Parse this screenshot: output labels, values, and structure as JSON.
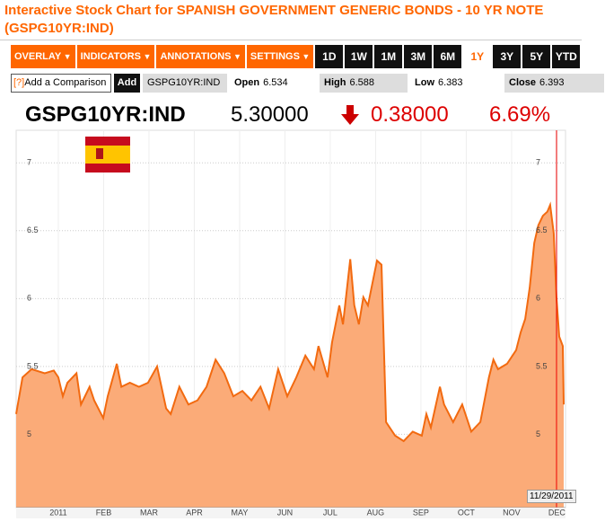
{
  "header": {
    "title": "Interactive Stock Chart for SPANISH GOVERNMENT GENERIC BONDS - 10 YR NOTE (GSPG10YR:IND)"
  },
  "toolbar": {
    "menus": [
      "OVERLAY",
      "INDICATORS",
      "ANNOTATIONS",
      "SETTINGS"
    ],
    "ranges": [
      "1D",
      "1W",
      "1M",
      "3M",
      "6M",
      "1Y",
      "3Y",
      "5Y",
      "YTD"
    ],
    "selected": "1Y"
  },
  "comparison": {
    "help": "[?]",
    "placeholder": "Add a Comparison",
    "button": "Add"
  },
  "stats": {
    "ticker": "GSPG10YR:IND",
    "items": [
      {
        "label": "Open",
        "value": 6.534
      },
      {
        "label": "High",
        "value": 6.588
      },
      {
        "label": "Low",
        "value": 6.383
      },
      {
        "label": "Close",
        "value": 6.393
      }
    ]
  },
  "quote": {
    "ticker": "GSPG10YR:IND",
    "price": "5.30000",
    "change": "0.38000",
    "percent": "6.69%"
  },
  "cursor_date": "11/29/2011",
  "chart_data": {
    "type": "area",
    "color": "#f26a10",
    "fill": "#fbab78",
    "grid": true,
    "x": [
      -0.93,
      -0.79,
      -0.59,
      -0.3,
      -0.1,
      0,
      0.1,
      0.2,
      0.4,
      0.5,
      0.69,
      0.79,
      0.99,
      1.09,
      1.29,
      1.39,
      1.58,
      1.78,
      1.98,
      2.18,
      2.38,
      2.48,
      2.67,
      2.87,
      3.07,
      3.27,
      3.47,
      3.66,
      3.86,
      4.06,
      4.26,
      4.46,
      4.65,
      4.85,
      5.05,
      5.25,
      5.45,
      5.64,
      5.74,
      5.94,
      6.04,
      6.2,
      6.28,
      6.44,
      6.53,
      6.63,
      6.73,
      6.83,
      7.03,
      7.13,
      7.23,
      7.43,
      7.62,
      7.82,
      8.02,
      8.12,
      8.22,
      8.42,
      8.51,
      8.71,
      8.91,
      9.11,
      9.31,
      9.5,
      9.6,
      9.7,
      9.9,
      10.1,
      10.2,
      10.3,
      10.4,
      10.5,
      10.59,
      10.69,
      10.79,
      10.85,
      10.93,
      10.99,
      11.05,
      11.13,
      11.15
    ],
    "values": [
      5.15,
      5.42,
      5.48,
      5.45,
      5.47,
      5.42,
      5.28,
      5.38,
      5.45,
      5.22,
      5.35,
      5.25,
      5.12,
      5.28,
      5.52,
      5.35,
      5.38,
      5.35,
      5.38,
      5.5,
      5.19,
      5.15,
      5.35,
      5.22,
      5.25,
      5.35,
      5.55,
      5.45,
      5.28,
      5.32,
      5.25,
      5.35,
      5.19,
      5.48,
      5.28,
      5.42,
      5.58,
      5.48,
      5.65,
      5.42,
      5.68,
      5.95,
      5.81,
      6.29,
      5.95,
      5.81,
      6.01,
      5.95,
      6.28,
      6.25,
      5.09,
      4.99,
      4.95,
      5.02,
      4.99,
      5.15,
      5.05,
      5.35,
      5.22,
      5.09,
      5.22,
      5.02,
      5.09,
      5.42,
      5.55,
      5.48,
      5.52,
      5.62,
      5.75,
      5.85,
      6.08,
      6.41,
      6.54,
      6.61,
      6.64,
      6.69,
      6.48,
      6.01,
      5.72,
      5.65,
      5.22
    ],
    "xlim": [
      -0.93,
      11.15
    ],
    "ylim": [
      4.46,
      7.24
    ],
    "yticks": [
      5,
      5.5,
      6,
      6.5,
      7
    ],
    "xticks": [
      {
        "value": 0,
        "label": "2011"
      },
      {
        "value": 1,
        "label": "FEB"
      },
      {
        "value": 2,
        "label": "MAR"
      },
      {
        "value": 3,
        "label": "APR"
      },
      {
        "value": 4,
        "label": "MAY"
      },
      {
        "value": 5,
        "label": "JUN"
      },
      {
        "value": 6,
        "label": "JUL"
      },
      {
        "value": 7,
        "label": "AUG"
      },
      {
        "value": 8,
        "label": "SEP"
      },
      {
        "value": 9,
        "label": "OCT"
      },
      {
        "value": 10,
        "label": "NOV"
      },
      {
        "value": 11,
        "label": "DEC"
      }
    ]
  }
}
